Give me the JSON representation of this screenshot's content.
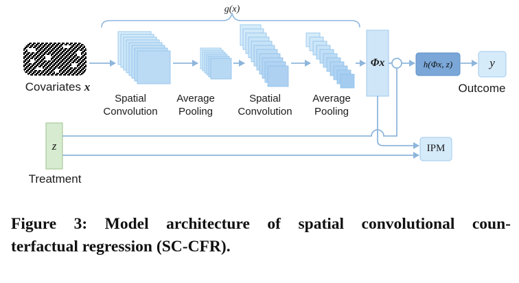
{
  "diagram": {
    "g_label": "g(x)",
    "covariates_label": "Covariates",
    "covariates_symbol": "x",
    "treatment_label": "Treatment",
    "treatment_symbol": "z",
    "stages": [
      {
        "line1": "Spatial",
        "line2": "Convolution"
      },
      {
        "line1": "Average",
        "line2": "Pooling"
      },
      {
        "line1": "Spatial",
        "line2": "Convolution"
      },
      {
        "line1": "Average",
        "line2": "Pooling"
      }
    ],
    "phi_label": "Φx",
    "h_label": "h(Φx, z)",
    "y_label": "y",
    "outcome_label": "Outcome",
    "ipm_label": "IPM",
    "colors": {
      "block_fill": "#cfe6f8",
      "block_edge": "#7db4e6",
      "arrow": "#8eb6dc",
      "h_fill": "#7aa7d8",
      "treatment_fill": "#d6ebcf",
      "treatment_edge": "#9cc28e"
    }
  },
  "caption": {
    "line1": "Figure 3: Model architecture of spatial convolutional coun-",
    "line2": "terfactual regression (SC-CFR)."
  }
}
